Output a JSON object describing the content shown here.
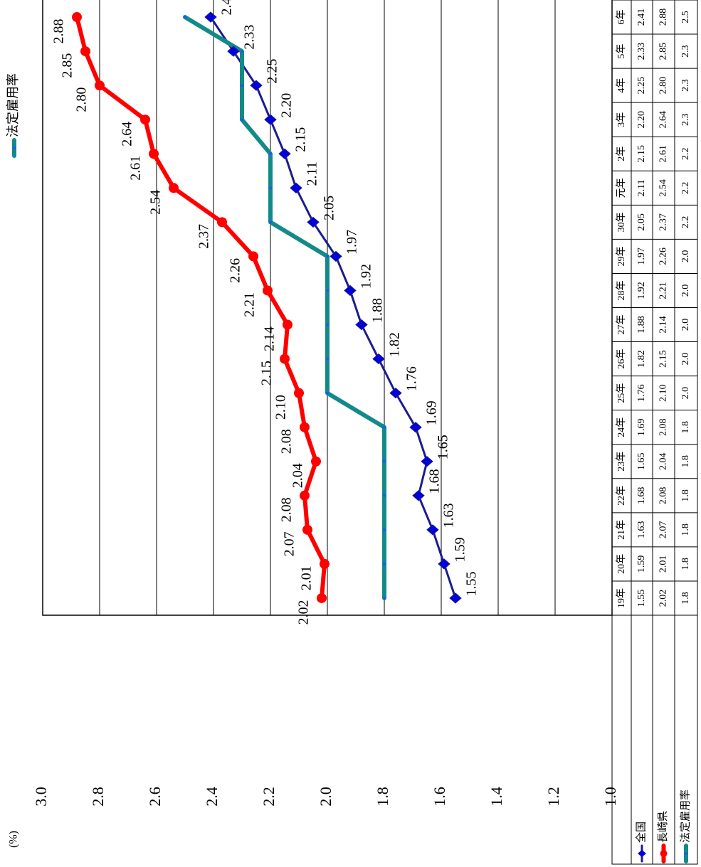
{
  "chart_data": {
    "type": "line",
    "y_label": "(%)",
    "categories": [
      "19年",
      "20年",
      "21年",
      "22年",
      "23年",
      "24年",
      "25年",
      "26年",
      "27年",
      "28年",
      "29年",
      "30年",
      "元年",
      "2年",
      "3年",
      "4年",
      "5年",
      "6年"
    ],
    "series": [
      {
        "name": "全国",
        "color": "#1c1c8f",
        "marker": "diamond",
        "values": [
          1.55,
          1.59,
          1.63,
          1.68,
          1.65,
          1.69,
          1.76,
          1.82,
          1.88,
          1.92,
          1.97,
          2.05,
          2.11,
          2.15,
          2.2,
          2.25,
          2.33,
          2.41
        ],
        "value_labels": [
          "1.55",
          "1.59",
          "1.63",
          "1.68",
          "1.65",
          "1.69",
          "1.76",
          "1.82",
          "1.88",
          "1.92",
          "1.97",
          "2.05",
          "2.11",
          "2.15",
          "2.20",
          "2.25",
          "2.33",
          "2.41"
        ]
      },
      {
        "name": "長崎県",
        "color": "#ff0000",
        "marker": "circle",
        "values": [
          2.02,
          2.01,
          2.07,
          2.08,
          2.04,
          2.08,
          2.1,
          2.15,
          2.14,
          2.21,
          2.26,
          2.37,
          2.54,
          2.61,
          2.64,
          2.8,
          2.85,
          2.88
        ],
        "value_labels": [
          "2.02",
          "2.01",
          "2.07",
          "2.08",
          "2.04",
          "2.08",
          "2.10",
          "2.15",
          "2.14",
          "2.21",
          "2.26",
          "2.37",
          "2.54",
          "2.61",
          "2.64",
          "2.80",
          "2.85",
          "2.88"
        ]
      },
      {
        "name": "法定雇用率",
        "color": "#138a8a",
        "marker": "dot",
        "values": [
          1.8,
          1.8,
          1.8,
          1.8,
          1.8,
          1.8,
          2,
          2,
          2,
          2,
          2,
          2.2,
          2.2,
          2.2,
          2.3,
          2.3,
          2.3,
          2.5
        ],
        "value_labels": [
          "1.8",
          "1.8",
          "1.8",
          "1.8",
          "1.8",
          "1.8",
          "2.0",
          "2.0",
          "2.0",
          "2.0",
          "2.0",
          "2.2",
          "2.2",
          "2.2",
          "2.3",
          "2.3",
          "2.3",
          "2.5"
        ]
      }
    ],
    "ylim": [
      1,
      3
    ],
    "yticks": [
      {
        "value": 3,
        "label": "3.0"
      },
      2.8,
      2.6,
      2.4,
      2.2,
      {
        "value": 2,
        "label": "2.0"
      },
      1.8,
      1.6,
      1.4,
      1.2,
      {
        "value": 1,
        "label": "1.0"
      }
    ],
    "grid": true,
    "legend": {
      "position": "top-left",
      "series": [
        2
      ]
    }
  }
}
